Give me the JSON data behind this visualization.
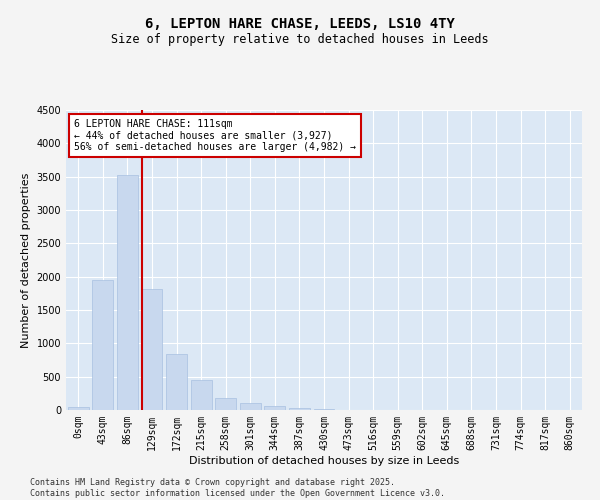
{
  "title": "6, LEPTON HARE CHASE, LEEDS, LS10 4TY",
  "subtitle": "Size of property relative to detached houses in Leeds",
  "xlabel": "Distribution of detached houses by size in Leeds",
  "ylabel": "Number of detached properties",
  "bar_color": "#c8d8ee",
  "bar_edge_color": "#a8c0e0",
  "bg_color": "#dce8f5",
  "grid_color": "#ffffff",
  "annotation_box_color": "#cc0000",
  "vline_color": "#cc0000",
  "fig_bg_color": "#f4f4f4",
  "categories": [
    "0sqm",
    "43sqm",
    "86sqm",
    "129sqm",
    "172sqm",
    "215sqm",
    "258sqm",
    "301sqm",
    "344sqm",
    "387sqm",
    "430sqm",
    "473sqm",
    "516sqm",
    "559sqm",
    "602sqm",
    "645sqm",
    "688sqm",
    "731sqm",
    "774sqm",
    "817sqm",
    "860sqm"
  ],
  "values": [
    50,
    1950,
    3530,
    1820,
    840,
    450,
    180,
    100,
    55,
    30,
    10,
    0,
    0,
    0,
    0,
    0,
    0,
    0,
    0,
    0,
    0
  ],
  "ylim": [
    0,
    4500
  ],
  "yticks": [
    0,
    500,
    1000,
    1500,
    2000,
    2500,
    3000,
    3500,
    4000,
    4500
  ],
  "property_label": "6 LEPTON HARE CHASE: 111sqm",
  "annotation_line1": "← 44% of detached houses are smaller (3,927)",
  "annotation_line2": "56% of semi-detached houses are larger (4,982) →",
  "vline_x": 2.58,
  "footer_line1": "Contains HM Land Registry data © Crown copyright and database right 2025.",
  "footer_line2": "Contains public sector information licensed under the Open Government Licence v3.0.",
  "title_fontsize": 10,
  "subtitle_fontsize": 8.5,
  "tick_fontsize": 7,
  "label_fontsize": 8,
  "annotation_fontsize": 7,
  "footer_fontsize": 6
}
